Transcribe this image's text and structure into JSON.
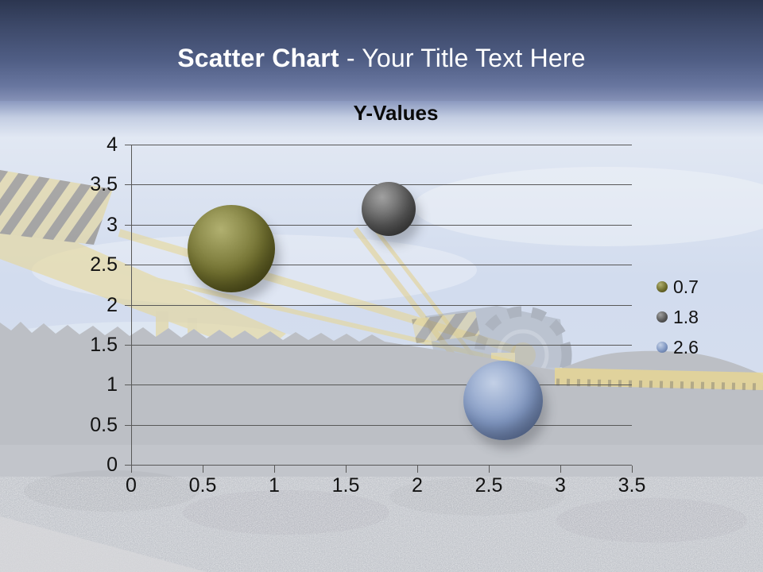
{
  "slide": {
    "title": {
      "bold": "Scatter Chart",
      "rest": " - Your Title Text Here"
    }
  },
  "chart_data": {
    "type": "scatter",
    "subtype": "bubble",
    "title": "Y-Values",
    "xlabel": "",
    "ylabel": "",
    "xlim": [
      0,
      3.5
    ],
    "ylim": [
      0,
      4
    ],
    "grid": "horizontal-only",
    "legend_position": "right",
    "x_ticks": [
      {
        "v": 0,
        "label": "0"
      },
      {
        "v": 0.5,
        "label": "0.5"
      },
      {
        "v": 1,
        "label": "1"
      },
      {
        "v": 1.5,
        "label": "1.5"
      },
      {
        "v": 2,
        "label": "2"
      },
      {
        "v": 2.5,
        "label": "2.5"
      },
      {
        "v": 3,
        "label": "3"
      },
      {
        "v": 3.5,
        "label": "3.5"
      }
    ],
    "y_ticks": [
      {
        "v": 0,
        "label": "0"
      },
      {
        "v": 0.5,
        "label": "0.5"
      },
      {
        "v": 1,
        "label": "1"
      },
      {
        "v": 1.5,
        "label": "1.5"
      },
      {
        "v": 2,
        "label": "2"
      },
      {
        "v": 2.5,
        "label": "2.5"
      },
      {
        "v": 3,
        "label": "3"
      },
      {
        "v": 3.5,
        "label": "3.5"
      },
      {
        "v": 4,
        "label": "4"
      }
    ],
    "series": [
      {
        "name": "0.7",
        "x": 0.7,
        "y": 2.7,
        "bubble_radius_px": 55,
        "color_hi": "#b1b070",
        "color": "#6f6e2e",
        "color_dark": "#3e3d0e"
      },
      {
        "name": "1.8",
        "x": 1.8,
        "y": 3.2,
        "bubble_radius_px": 34,
        "color_hi": "#a0a0a0",
        "color": "#5a5a5a",
        "color_dark": "#2d2d2d"
      },
      {
        "name": "2.6",
        "x": 2.6,
        "y": 0.8,
        "bubble_radius_px": 50,
        "color_hi": "#c3d0e6",
        "color": "#8097c2",
        "color_dark": "#53668f"
      }
    ]
  },
  "colors": {
    "header_gradient_top": "#2c3650",
    "header_gradient_bottom": "#8591b6",
    "title_text": "#ffffff",
    "axis_text": "#121212",
    "gridline": "#585858",
    "sky": "#d2dcee",
    "hills": "#bcbfc5",
    "excavator_yellow": "#e9d78f"
  }
}
